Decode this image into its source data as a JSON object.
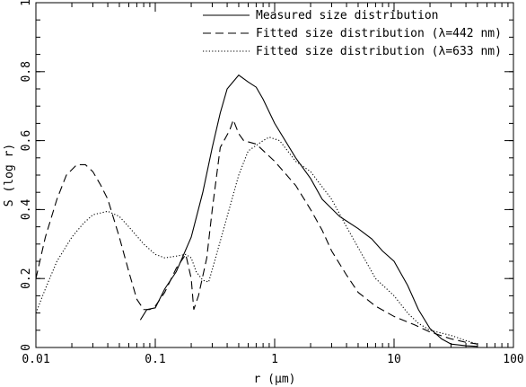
{
  "chart_data": {
    "type": "line",
    "title": "",
    "xlabel": "r (μm)",
    "ylabel": "S (log r)",
    "xscale": "log",
    "xlim": [
      0.01,
      100
    ],
    "ylim": [
      0,
      1
    ],
    "xticks": [
      {
        "value": 0.01,
        "label": "0.01"
      },
      {
        "value": 0.1,
        "label": "0.1"
      },
      {
        "value": 1,
        "label": "1"
      },
      {
        "value": 10,
        "label": "10"
      },
      {
        "value": 100,
        "label": "100"
      }
    ],
    "yticks": [
      {
        "value": 0,
        "label": "0"
      },
      {
        "value": 0.2,
        "label": "0.2"
      },
      {
        "value": 0.4,
        "label": "0.4"
      },
      {
        "value": 0.6,
        "label": "0.6"
      },
      {
        "value": 0.8,
        "label": "0.8"
      },
      {
        "value": 1,
        "label": "1"
      }
    ],
    "grid": false,
    "legend_position": "top-right",
    "series": [
      {
        "name": "Measured size distribution",
        "style": "solid",
        "points": [
          [
            0.075,
            0.08
          ],
          [
            0.085,
            0.11
          ],
          [
            0.1,
            0.115
          ],
          [
            0.12,
            0.17
          ],
          [
            0.15,
            0.22
          ],
          [
            0.2,
            0.32
          ],
          [
            0.25,
            0.45
          ],
          [
            0.3,
            0.58
          ],
          [
            0.35,
            0.68
          ],
          [
            0.4,
            0.75
          ],
          [
            0.5,
            0.79
          ],
          [
            0.6,
            0.77
          ],
          [
            0.7,
            0.755
          ],
          [
            0.8,
            0.72
          ],
          [
            1.0,
            0.65
          ],
          [
            1.5,
            0.55
          ],
          [
            2,
            0.49
          ],
          [
            2.5,
            0.43
          ],
          [
            3.5,
            0.38
          ],
          [
            5,
            0.345
          ],
          [
            6.5,
            0.315
          ],
          [
            8,
            0.28
          ],
          [
            10,
            0.25
          ],
          [
            13,
            0.18
          ],
          [
            16,
            0.11
          ],
          [
            20,
            0.055
          ],
          [
            25,
            0.025
          ],
          [
            30,
            0.01
          ],
          [
            40,
            0.005
          ],
          [
            50,
            0.003
          ]
        ]
      },
      {
        "name": "Fitted size distribution (λ=442 nm)",
        "style": "dashed",
        "points": [
          [
            0.01,
            0.2
          ],
          [
            0.012,
            0.32
          ],
          [
            0.015,
            0.43
          ],
          [
            0.018,
            0.5
          ],
          [
            0.022,
            0.53
          ],
          [
            0.026,
            0.53
          ],
          [
            0.03,
            0.51
          ],
          [
            0.035,
            0.47
          ],
          [
            0.04,
            0.43
          ],
          [
            0.05,
            0.32
          ],
          [
            0.06,
            0.22
          ],
          [
            0.07,
            0.14
          ],
          [
            0.08,
            0.11
          ],
          [
            0.09,
            0.11
          ],
          [
            0.1,
            0.12
          ],
          [
            0.12,
            0.16
          ],
          [
            0.15,
            0.23
          ],
          [
            0.18,
            0.27
          ],
          [
            0.2,
            0.2
          ],
          [
            0.21,
            0.11
          ],
          [
            0.23,
            0.15
          ],
          [
            0.27,
            0.26
          ],
          [
            0.3,
            0.4
          ],
          [
            0.35,
            0.58
          ],
          [
            0.42,
            0.63
          ],
          [
            0.45,
            0.66
          ],
          [
            0.5,
            0.62
          ],
          [
            0.55,
            0.6
          ],
          [
            0.7,
            0.59
          ],
          [
            1,
            0.54
          ],
          [
            1.5,
            0.47
          ],
          [
            2,
            0.4
          ],
          [
            2.5,
            0.34
          ],
          [
            3,
            0.28
          ],
          [
            4,
            0.21
          ],
          [
            5,
            0.16
          ],
          [
            7,
            0.12
          ],
          [
            10,
            0.09
          ],
          [
            15,
            0.065
          ],
          [
            20,
            0.045
          ],
          [
            30,
            0.025
          ],
          [
            40,
            0.015
          ],
          [
            50,
            0.01
          ]
        ]
      },
      {
        "name": "Fitted size distribution (λ=633 nm)",
        "style": "dotted",
        "points": [
          [
            0.01,
            0.1
          ],
          [
            0.012,
            0.17
          ],
          [
            0.015,
            0.25
          ],
          [
            0.02,
            0.32
          ],
          [
            0.025,
            0.36
          ],
          [
            0.03,
            0.385
          ],
          [
            0.04,
            0.395
          ],
          [
            0.05,
            0.38
          ],
          [
            0.06,
            0.35
          ],
          [
            0.08,
            0.3
          ],
          [
            0.1,
            0.27
          ],
          [
            0.12,
            0.26
          ],
          [
            0.15,
            0.265
          ],
          [
            0.18,
            0.27
          ],
          [
            0.2,
            0.26
          ],
          [
            0.22,
            0.22
          ],
          [
            0.25,
            0.195
          ],
          [
            0.28,
            0.19
          ],
          [
            0.32,
            0.26
          ],
          [
            0.4,
            0.38
          ],
          [
            0.5,
            0.5
          ],
          [
            0.6,
            0.57
          ],
          [
            0.8,
            0.6
          ],
          [
            0.9,
            0.61
          ],
          [
            1.1,
            0.6
          ],
          [
            1.5,
            0.54
          ],
          [
            2,
            0.51
          ],
          [
            3,
            0.43
          ],
          [
            4,
            0.35
          ],
          [
            5,
            0.29
          ],
          [
            7,
            0.2
          ],
          [
            10,
            0.15
          ],
          [
            13,
            0.1
          ],
          [
            16,
            0.07
          ],
          [
            20,
            0.05
          ],
          [
            30,
            0.035
          ],
          [
            40,
            0.02
          ],
          [
            50,
            0.01
          ]
        ]
      }
    ]
  }
}
